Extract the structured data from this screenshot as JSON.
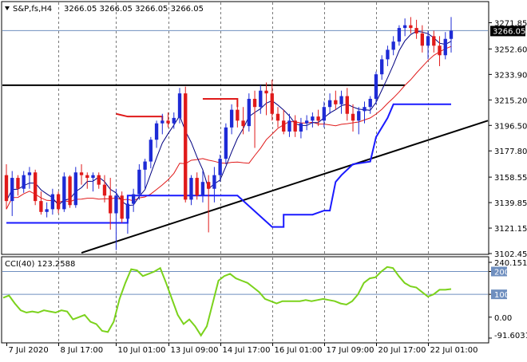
{
  "header": {
    "triangle_icon": "triangle-down-icon",
    "title": "S&P,fs,H4",
    "ohlc": "3266.05 3266.05 3266.05 3266.05"
  },
  "current_price_tag": "3266.05",
  "cci_header": "CCI(40) 123.2588",
  "colors": {
    "bull_candle": "#1e2bd6",
    "bear_candle": "#e01a1a",
    "fast_ma": "#000080",
    "slow_ma": "#e01a1a",
    "ichimoku_blue": "#1a1aff",
    "cci": "#7bd21c",
    "trendline": "#000000",
    "grid": "#7a7a7a"
  },
  "chart_data": [
    {
      "type": "candlestick",
      "symbol": "S&P,fs,H4",
      "ylim": [
        3102.45,
        3278
      ],
      "yticks": [
        "3271.85",
        "3252.60",
        "3233.90",
        "3215.20",
        "3196.50",
        "3177.80",
        "3158.55",
        "3139.85",
        "3121.15",
        "3102.45"
      ],
      "xticks": [
        "7 Jul 2020",
        "8 Jul 17:00",
        "10 Jul 01:00",
        "13 Jul 09:00",
        "14 Jul 17:00",
        "16 Jul 01:00",
        "17 Jul 09:00",
        "20 Jul 17:00",
        "22 Jul 01:00"
      ],
      "current_price": 3266.05,
      "candles": [
        [
          3160,
          3168,
          3135,
          3141
        ],
        [
          3141,
          3163,
          3130,
          3158
        ],
        [
          3158,
          3160,
          3145,
          3150
        ],
        [
          3150,
          3163,
          3147,
          3160
        ],
        [
          3160,
          3166,
          3150,
          3162
        ],
        [
          3162,
          3164,
          3138,
          3141
        ],
        [
          3141,
          3148,
          3131,
          3133
        ],
        [
          3133,
          3140,
          3129,
          3135
        ],
        [
          3135,
          3150,
          3131,
          3146
        ],
        [
          3146,
          3148,
          3132,
          3135
        ],
        [
          3135,
          3162,
          3133,
          3159
        ],
        [
          3159,
          3160,
          3136,
          3138
        ],
        [
          3138,
          3166,
          3136,
          3162
        ],
        [
          3162,
          3168,
          3153,
          3160
        ],
        [
          3160,
          3162,
          3150,
          3158
        ],
        [
          3158,
          3162,
          3148,
          3160
        ],
        [
          3160,
          3162,
          3150,
          3153
        ],
        [
          3153,
          3160,
          3140,
          3145
        ],
        [
          3145,
          3158,
          3120,
          3132
        ],
        [
          3132,
          3150,
          3105,
          3145
        ],
        [
          3145,
          3148,
          3125,
          3128
        ],
        [
          3128,
          3142,
          3117,
          3139
        ],
        [
          3139,
          3150,
          3133,
          3146
        ],
        [
          3146,
          3168,
          3142,
          3164
        ],
        [
          3164,
          3172,
          3150,
          3170
        ],
        [
          3170,
          3188,
          3165,
          3186
        ],
        [
          3186,
          3200,
          3180,
          3198
        ],
        [
          3198,
          3205,
          3190,
          3200
        ],
        [
          3200,
          3206,
          3195,
          3198
        ],
        [
          3198,
          3206,
          3194,
          3202
        ],
        [
          3202,
          3224,
          3198,
          3220
        ],
        [
          3220,
          3225,
          3140,
          3142
        ],
        [
          3142,
          3160,
          3138,
          3158
        ],
        [
          3158,
          3162,
          3142,
          3145
        ],
        [
          3145,
          3163,
          3140,
          3155
        ],
        [
          3155,
          3160,
          3118,
          3150
        ],
        [
          3150,
          3166,
          3140,
          3160
        ],
        [
          3160,
          3175,
          3155,
          3172
        ],
        [
          3172,
          3198,
          3168,
          3195
        ],
        [
          3195,
          3212,
          3190,
          3208
        ],
        [
          3208,
          3215,
          3195,
          3200
        ],
        [
          3200,
          3210,
          3190,
          3196
        ],
        [
          3196,
          3220,
          3192,
          3216
        ],
        [
          3216,
          3222,
          3180,
          3210
        ],
        [
          3210,
          3226,
          3205,
          3222
        ],
        [
          3222,
          3228,
          3204,
          3220
        ],
        [
          3220,
          3230,
          3200,
          3205
        ],
        [
          3205,
          3210,
          3195,
          3200
        ],
        [
          3200,
          3208,
          3190,
          3192
        ],
        [
          3192,
          3205,
          3188,
          3200
        ],
        [
          3200,
          3204,
          3188,
          3192
        ],
        [
          3192,
          3202,
          3187,
          3198
        ],
        [
          3198,
          3204,
          3193,
          3200
        ],
        [
          3200,
          3206,
          3195,
          3203
        ],
        [
          3203,
          3208,
          3196,
          3200
        ],
        [
          3200,
          3214,
          3195,
          3210
        ],
        [
          3210,
          3220,
          3205,
          3215
        ],
        [
          3215,
          3222,
          3208,
          3212
        ],
        [
          3212,
          3222,
          3205,
          3218
        ],
        [
          3218,
          3224,
          3200,
          3205
        ],
        [
          3205,
          3212,
          3192,
          3200
        ],
        [
          3200,
          3210,
          3190,
          3207
        ],
        [
          3207,
          3214,
          3198,
          3210
        ],
        [
          3210,
          3218,
          3205,
          3216
        ],
        [
          3216,
          3236,
          3212,
          3234
        ],
        [
          3234,
          3248,
          3230,
          3245
        ],
        [
          3245,
          3255,
          3240,
          3252
        ],
        [
          3252,
          3262,
          3248,
          3258
        ],
        [
          3258,
          3270,
          3255,
          3268
        ],
        [
          3268,
          3275,
          3262,
          3270
        ],
        [
          3270,
          3276,
          3264,
          3268
        ],
        [
          3268,
          3274,
          3260,
          3264
        ],
        [
          3264,
          3270,
          3250,
          3255
        ],
        [
          3255,
          3266,
          3245,
          3262
        ],
        [
          3262,
          3266,
          3250,
          3255
        ],
        [
          3255,
          3262,
          3240,
          3248
        ],
        [
          3248,
          3265,
          3245,
          3260
        ],
        [
          3260,
          3276,
          3250,
          3266
        ]
      ]
    },
    {
      "type": "line",
      "indicator": "CCI(40)",
      "current_value": 123.2588,
      "ylim": [
        -91.6031,
        240.1513
      ],
      "yticks": [
        "240.1513",
        "200",
        "100",
        "0.00",
        "-91.6031"
      ],
      "levels": [
        200,
        100
      ],
      "values": [
        85,
        95,
        60,
        30,
        20,
        25,
        20,
        30,
        25,
        20,
        30,
        25,
        -10,
        0,
        10,
        -20,
        -30,
        -60,
        -65,
        -20,
        80,
        150,
        210,
        205,
        180,
        190,
        200,
        215,
        150,
        80,
        10,
        -30,
        -10,
        -40,
        -80,
        -40,
        60,
        160,
        180,
        190,
        170,
        160,
        150,
        130,
        110,
        80,
        70,
        60,
        70,
        70,
        70,
        70,
        75,
        70,
        75,
        80,
        75,
        70,
        60,
        55,
        70,
        100,
        150,
        170,
        175,
        200,
        220,
        215,
        180,
        150,
        135,
        130,
        110,
        90,
        100,
        120,
        120,
        123
      ]
    }
  ]
}
